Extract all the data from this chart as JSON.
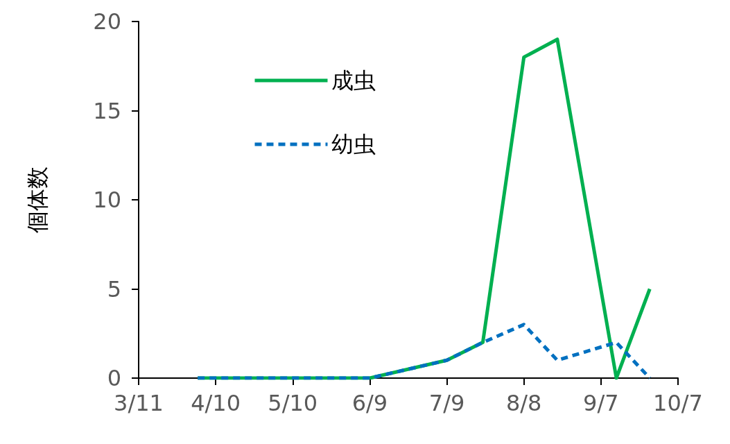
{
  "chart_data": {
    "type": "line",
    "ylabel": "個体数",
    "x": [
      "--04-03",
      "--06-09",
      "--07-09",
      "--07-23",
      "--08-08",
      "--08-21",
      "--09-13",
      "--09-26"
    ],
    "series": [
      {
        "name": "成虫",
        "color": "#00b050",
        "line_style": "solid",
        "values": [
          0,
          0,
          1,
          2,
          18,
          19,
          0,
          5
        ]
      },
      {
        "name": "幼虫",
        "color": "#0070c0",
        "line_style": "dashed",
        "values": [
          0,
          0,
          1,
          2,
          3,
          1,
          2,
          0
        ]
      }
    ],
    "xlim": [
      "--03-11",
      "--10-07"
    ],
    "xticks": [
      {
        "value": "--03-11",
        "label": "3/11"
      },
      {
        "value": "--04-10",
        "label": "4/10"
      },
      {
        "value": "--05-10",
        "label": "5/10"
      },
      {
        "value": "--06-09",
        "label": "6/9"
      },
      {
        "value": "--07-09",
        "label": "7/9"
      },
      {
        "value": "--08-08",
        "label": "8/8"
      },
      {
        "value": "--09-07",
        "label": "9/7"
      },
      {
        "value": "--10-07",
        "label": "10/7"
      }
    ],
    "ylim": [
      0,
      20
    ],
    "yticks": [
      0,
      5,
      10,
      15,
      20
    ],
    "grid": false,
    "legend": "top left",
    "marker": "none"
  }
}
